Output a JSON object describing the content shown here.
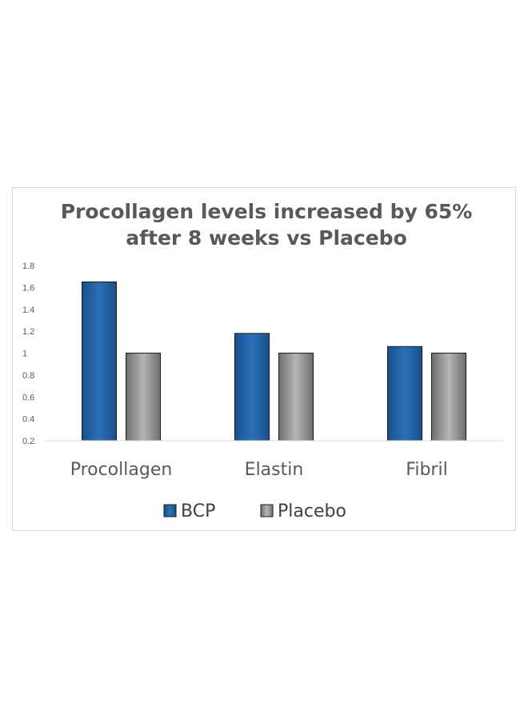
{
  "chart_data": {
    "type": "bar",
    "title": [
      "Procollagen levels increased by 65%",
      "after 8 weeks vs Placebo"
    ],
    "categories": [
      "Procollagen",
      "Elastin",
      "Fibril"
    ],
    "series": [
      {
        "name": "BCP",
        "values": [
          1.65,
          1.18,
          1.06
        ],
        "color": "#1f5fa0"
      },
      {
        "name": "Placebo",
        "values": [
          1.0,
          1.0,
          1.0
        ],
        "color": "#8c8c8c"
      }
    ],
    "yticks": [
      "0.2",
      "0.4",
      "0.6",
      "0.8",
      "1",
      "1.2",
      "1.4",
      "1.6",
      "1.8"
    ],
    "ylim": [
      0.2,
      1.8
    ],
    "grid": false,
    "legend_position": "bottom"
  }
}
